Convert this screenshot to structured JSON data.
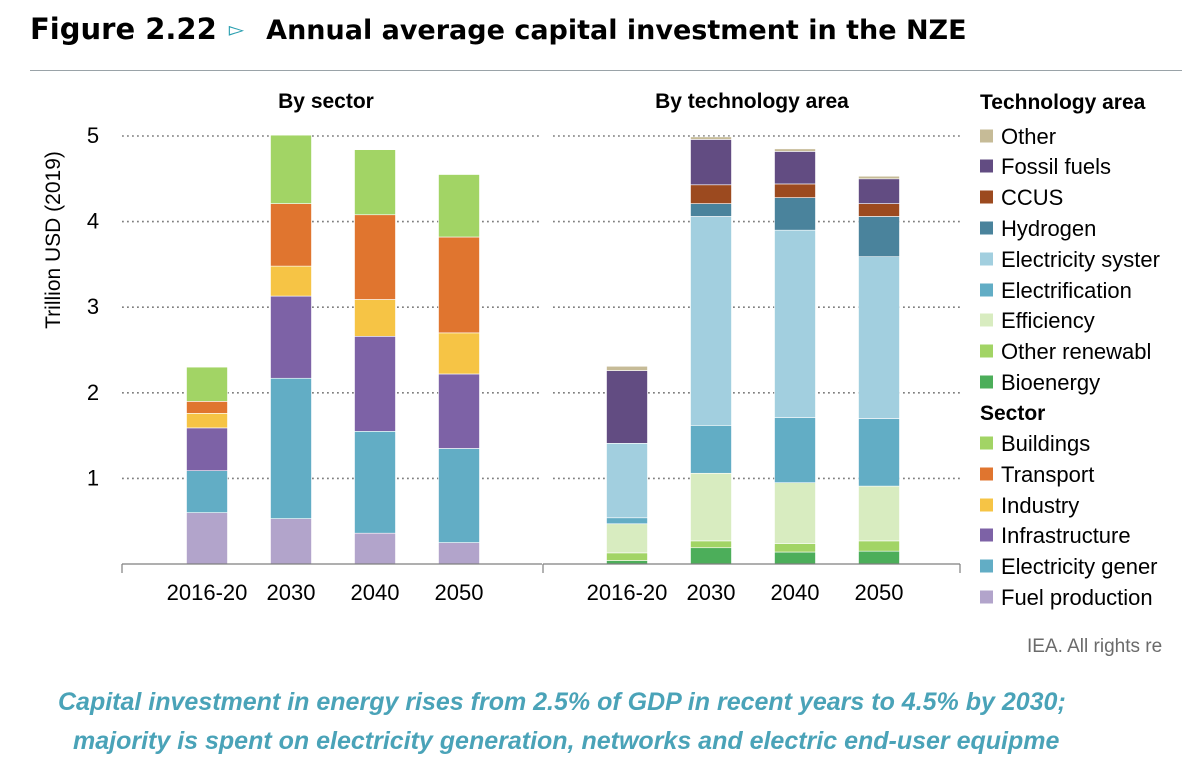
{
  "figure": {
    "number": "Figure 2.22",
    "arrow_icon": "triangle-right-outline-icon",
    "title": "Annual average capital investment in the NZE"
  },
  "credit": "IEA. All rights re",
  "caption": {
    "line1": "Capital investment in energy rises from 2.5% of GDP in recent years to 4.5% by 2030;",
    "line2": "majority is spent on electricity generation, networks and electric end-user equipme"
  },
  "chart_data": {
    "type": "bar",
    "stacked": true,
    "ylabel": "Trillion USD (2019)",
    "ylim": [
      0,
      5
    ],
    "yticks": [
      1,
      2,
      3,
      4,
      5
    ],
    "grid": "dotted",
    "legend_placement": "right",
    "panels": [
      {
        "title": "By sector",
        "categories": [
          "2016-20",
          "2030",
          "2040",
          "2050"
        ],
        "series": [
          {
            "name": "Fuel production",
            "color": "#b2a4cb",
            "values": [
              0.6,
              0.53,
              0.36,
              0.25
            ]
          },
          {
            "name": "Electricity gener",
            "color": "#62adc5",
            "values": [
              0.49,
              1.64,
              1.19,
              1.1
            ]
          },
          {
            "name": "Infrastructure",
            "color": "#7d62a6",
            "values": [
              0.5,
              0.96,
              1.11,
              0.87
            ]
          },
          {
            "name": "Industry",
            "color": "#f6c445",
            "values": [
              0.17,
              0.35,
              0.43,
              0.48
            ]
          },
          {
            "name": "Transport",
            "color": "#e0752f",
            "values": [
              0.14,
              0.73,
              0.99,
              1.12
            ]
          },
          {
            "name": "Buildings",
            "color": "#a2d465",
            "values": [
              0.4,
              0.8,
              0.76,
              0.73
            ]
          }
        ]
      },
      {
        "title": "By technology area",
        "categories": [
          "2016-20",
          "2030",
          "2040",
          "2050"
        ],
        "series": [
          {
            "name": "Bioenergy",
            "color": "#4cae5a",
            "values": [
              0.04,
              0.19,
              0.14,
              0.15
            ]
          },
          {
            "name": "Other renewable",
            "color": "#a2d465",
            "values": [
              0.09,
              0.08,
              0.1,
              0.12
            ]
          },
          {
            "name": "Efficiency",
            "color": "#d8ecc0",
            "values": [
              0.34,
              0.79,
              0.71,
              0.64
            ]
          },
          {
            "name": "Electrification",
            "color": "#62adc5",
            "values": [
              0.07,
              0.56,
              0.76,
              0.79
            ]
          },
          {
            "name": "Electricity system",
            "color": "#a2cfdf",
            "values": [
              0.87,
              2.44,
              2.19,
              1.89
            ]
          },
          {
            "name": "Hydrogen",
            "color": "#4a839c",
            "values": [
              0.0,
              0.15,
              0.38,
              0.47
            ]
          },
          {
            "name": "CCUS",
            "color": "#9c4a1f",
            "values": [
              0.0,
              0.22,
              0.16,
              0.15
            ]
          },
          {
            "name": "Fossil fuels",
            "color": "#624c82",
            "values": [
              0.85,
              0.53,
              0.38,
              0.29
            ]
          },
          {
            "name": "Other",
            "color": "#c6bb97",
            "values": [
              0.05,
              0.03,
              0.03,
              0.03
            ]
          }
        ]
      }
    ],
    "legend": {
      "technology_title": "Technology area",
      "technology_items": [
        {
          "label": "Other",
          "color": "#c6bb97"
        },
        {
          "label": "Fossil fuels",
          "color": "#624c82"
        },
        {
          "label": "CCUS",
          "color": "#9c4a1f"
        },
        {
          "label": "Hydrogen",
          "color": "#4a839c"
        },
        {
          "label": "Electricity syster",
          "color": "#a2cfdf"
        },
        {
          "label": "Electrification",
          "color": "#62adc5"
        },
        {
          "label": "Efficiency",
          "color": "#d8ecc0"
        },
        {
          "label": "Other renewabl",
          "color": "#a2d465"
        },
        {
          "label": "Bioenergy",
          "color": "#4cae5a"
        }
      ],
      "sector_title": "Sector",
      "sector_items": [
        {
          "label": "Buildings",
          "color": "#a2d465"
        },
        {
          "label": "Transport",
          "color": "#e0752f"
        },
        {
          "label": "Industry",
          "color": "#f6c445"
        },
        {
          "label": "Infrastructure",
          "color": "#7d62a6"
        },
        {
          "label": "Electricity gener",
          "color": "#62adc5"
        },
        {
          "label": "Fuel production",
          "color": "#b2a4cb"
        }
      ]
    }
  }
}
